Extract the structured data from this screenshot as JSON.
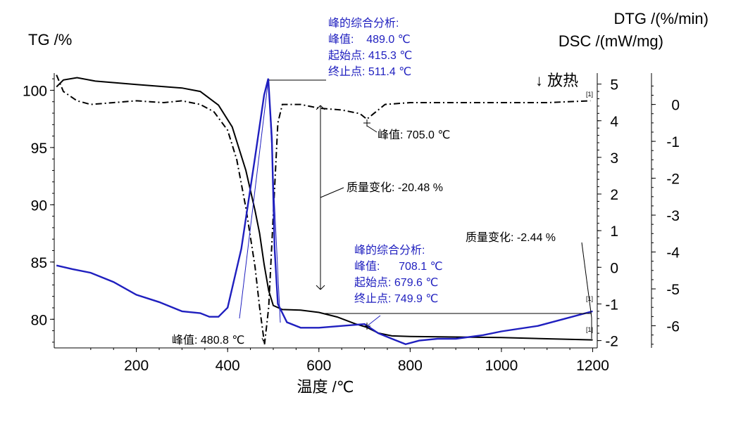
{
  "chart_data": {
    "type": "line",
    "xlabel": "温度 /℃",
    "xlim": [
      20,
      1210
    ],
    "x_ticks": [
      "200",
      "400",
      "600",
      "800",
      "1000",
      "1200"
    ],
    "axes": {
      "tg": {
        "label": "TG /%",
        "lim": [
          77.5,
          101.5
        ],
        "ticks": [
          "80",
          "85",
          "90",
          "95",
          "100"
        ]
      },
      "dsc": {
        "label": "DSC /(mW/mg)",
        "lim": [
          -2.2,
          5.3
        ],
        "ticks": [
          "-2",
          "-1",
          "0",
          "1",
          "2",
          "3",
          "4",
          "5"
        ]
      },
      "dtg": {
        "label": "DTG /(%/min)",
        "lim": [
          -6.6,
          0.85
        ],
        "ticks": [
          "0",
          "-1",
          "-2",
          "-3",
          "-4",
          "-5",
          "-6"
        ]
      }
    },
    "exo_label": "↓ 放热",
    "series": [
      {
        "axis": "tg",
        "color": "#000000",
        "dash": "solid",
        "points": [
          [
            25,
            100.3
          ],
          [
            40,
            100.9
          ],
          [
            70,
            101.1
          ],
          [
            110,
            100.8
          ],
          [
            200,
            100.5
          ],
          [
            300,
            100.2
          ],
          [
            340,
            99.9
          ],
          [
            380,
            98.7
          ],
          [
            410,
            96.8
          ],
          [
            440,
            93.0
          ],
          [
            460,
            89.5
          ],
          [
            470,
            87.5
          ],
          [
            480,
            84.8
          ],
          [
            490,
            82.5
          ],
          [
            500,
            81.2
          ],
          [
            520,
            80.85
          ],
          [
            560,
            80.8
          ],
          [
            600,
            80.6
          ],
          [
            640,
            80.2
          ],
          [
            680,
            79.6
          ],
          [
            705,
            79.3
          ],
          [
            730,
            78.8
          ],
          [
            760,
            78.55
          ],
          [
            800,
            78.5
          ],
          [
            900,
            78.45
          ],
          [
            1000,
            78.4
          ],
          [
            1100,
            78.3
          ],
          [
            1200,
            78.2
          ]
        ]
      },
      {
        "axis": "dtg",
        "color": "#000000",
        "dash": "dashdot",
        "points": [
          [
            25,
            0.8
          ],
          [
            40,
            0.35
          ],
          [
            70,
            0.1
          ],
          [
            100,
            0.0
          ],
          [
            150,
            0.05
          ],
          [
            200,
            0.1
          ],
          [
            260,
            0.05
          ],
          [
            300,
            0.1
          ],
          [
            340,
            0.0
          ],
          [
            370,
            -0.2
          ],
          [
            400,
            -0.7
          ],
          [
            420,
            -1.5
          ],
          [
            440,
            -2.8
          ],
          [
            460,
            -4.4
          ],
          [
            470,
            -5.5
          ],
          [
            480.8,
            -6.5
          ],
          [
            490,
            -5.5
          ],
          [
            500,
            -3.0
          ],
          [
            510,
            -0.5
          ],
          [
            520,
            0.0
          ],
          [
            560,
            0.0
          ],
          [
            600,
            -0.1
          ],
          [
            650,
            -0.15
          ],
          [
            690,
            -0.25
          ],
          [
            705,
            -0.4
          ],
          [
            720,
            -0.25
          ],
          [
            745,
            0.0
          ],
          [
            800,
            0.05
          ],
          [
            900,
            0.05
          ],
          [
            1000,
            0.05
          ],
          [
            1100,
            0.05
          ],
          [
            1195,
            0.1
          ]
        ]
      },
      {
        "axis": "dsc",
        "color": "#1f1fbf",
        "dash": "solid",
        "points": [
          [
            25,
            0.05
          ],
          [
            60,
            -0.05
          ],
          [
            100,
            -0.15
          ],
          [
            150,
            -0.4
          ],
          [
            200,
            -0.75
          ],
          [
            250,
            -0.95
          ],
          [
            300,
            -1.2
          ],
          [
            340,
            -1.25
          ],
          [
            360,
            -1.35
          ],
          [
            380,
            -1.35
          ],
          [
            400,
            -1.1
          ],
          [
            430,
            0.5
          ],
          [
            460,
            3.0
          ],
          [
            480,
            4.7
          ],
          [
            489,
            5.15
          ],
          [
            497,
            3.5
          ],
          [
            503,
            0.5
          ],
          [
            510,
            -1.0
          ],
          [
            530,
            -1.5
          ],
          [
            560,
            -1.65
          ],
          [
            600,
            -1.65
          ],
          [
            650,
            -1.6
          ],
          [
            700,
            -1.55
          ],
          [
            730,
            -1.8
          ],
          [
            760,
            -1.95
          ],
          [
            790,
            -2.1
          ],
          [
            820,
            -2.0
          ],
          [
            860,
            -1.95
          ],
          [
            900,
            -1.95
          ],
          [
            960,
            -1.85
          ],
          [
            1000,
            -1.75
          ],
          [
            1080,
            -1.6
          ],
          [
            1140,
            -1.4
          ],
          [
            1200,
            -1.2
          ]
        ]
      }
    ],
    "annotations": [
      {
        "color": "blue",
        "lines": [
          "峰的综合分析:",
          "峰值:    489.0 ℃",
          "起始点: 415.3 ℃",
          "终止点: 511.4 ℃"
        ]
      },
      {
        "color": "black",
        "lines": [
          "峰值: 705.0 ℃"
        ]
      },
      {
        "color": "black",
        "lines": [
          "质量变化: -20.48 %"
        ]
      },
      {
        "color": "black",
        "lines": [
          "质量变化: -2.44 %"
        ]
      },
      {
        "color": "blue",
        "lines": [
          "峰的综合分析:",
          "峰值:      708.1 ℃",
          "起始点: 679.6 ℃",
          "终止点: 749.9 ℃"
        ]
      },
      {
        "color": "black",
        "lines": [
          "峰值: 480.8 ℃"
        ]
      }
    ],
    "marker_label": "[1]"
  }
}
